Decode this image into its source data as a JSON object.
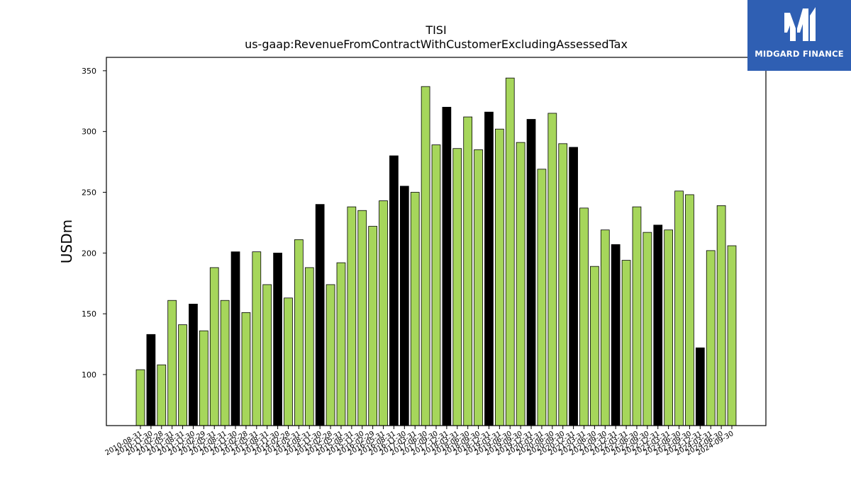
{
  "brand": {
    "name": "MIDGARD FINANCE",
    "bg_color": "#2f5fb3",
    "icon": "midgard-m-logo-icon"
  },
  "chart_data": {
    "type": "bar",
    "title": "TISI",
    "subtitle": "us-gaap:RevenueFromContractWithCustomerExcludingAssessedTax",
    "xlabel": "",
    "ylabel": "USDm",
    "ylim": [
      58,
      361
    ],
    "yticks": [
      100,
      150,
      200,
      250,
      300,
      350
    ],
    "grid": false,
    "colors": {
      "quarter": "#a6d65b",
      "fiscal_year_end": "#000000",
      "edge": "#000000"
    },
    "categories": [
      "2010-08-31",
      "2010-11-30",
      "2011-02-28",
      "2011-05-31",
      "2011-08-31",
      "2011-11-30",
      "2012-02-29",
      "2012-05-31",
      "2012-08-31",
      "2012-11-30",
      "2013-02-28",
      "2013-05-31",
      "2013-08-31",
      "2013-11-30",
      "2014-02-28",
      "2014-05-31",
      "2014-08-31",
      "2014-11-30",
      "2015-02-28",
      "2015-05-31",
      "2015-08-31",
      "2015-11-30",
      "2016-02-29",
      "2016-05-31",
      "2016-08-31",
      "2016-11-30",
      "2017-03-31",
      "2017-06-30",
      "2017-09-30",
      "2017-12-31",
      "2018-03-31",
      "2018-06-30",
      "2018-09-30",
      "2018-12-31",
      "2019-03-31",
      "2019-06-30",
      "2019-09-30",
      "2019-12-31",
      "2020-03-31",
      "2020-06-30",
      "2020-09-30",
      "2020-12-31",
      "2021-03-31",
      "2021-06-30",
      "2021-09-30",
      "2021-12-31",
      "2022-03-31",
      "2022-06-30",
      "2022-09-30",
      "2022-12-31",
      "2023-03-31",
      "2023-06-30",
      "2023-09-30",
      "2023-12-31",
      "2024-03-31",
      "2024-06-30",
      "2024-09-30"
    ],
    "values": [
      104,
      133,
      108,
      161,
      141,
      158,
      136,
      188,
      161,
      201,
      151,
      201,
      174,
      200,
      163,
      211,
      188,
      240,
      174,
      192,
      238,
      235,
      222,
      243,
      280,
      255,
      250,
      337,
      289,
      320,
      286,
      312,
      285,
      316,
      302,
      344,
      291,
      310,
      269,
      315,
      290,
      287,
      237,
      189,
      219,
      207,
      194,
      238,
      217,
      223,
      219,
      251,
      248,
      122,
      202,
      239,
      206
    ],
    "fiscal_year_end": [
      false,
      true,
      false,
      false,
      false,
      true,
      false,
      false,
      false,
      true,
      false,
      false,
      false,
      true,
      false,
      false,
      false,
      true,
      false,
      false,
      false,
      false,
      false,
      false,
      true,
      true,
      false,
      false,
      false,
      true,
      false,
      false,
      false,
      true,
      false,
      false,
      false,
      true,
      false,
      false,
      false,
      true,
      false,
      false,
      false,
      true,
      false,
      false,
      false,
      true,
      false,
      false,
      false,
      true,
      false,
      false,
      false
    ]
  }
}
